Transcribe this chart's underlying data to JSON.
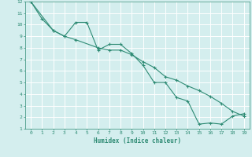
{
  "xlabel": "Humidex (Indice chaleur)",
  "line1_x": [
    0,
    1,
    2,
    3,
    4,
    5,
    6,
    7,
    8,
    9,
    10,
    11,
    12,
    13,
    14,
    15,
    16,
    17,
    18,
    19
  ],
  "line1_y": [
    12,
    10.5,
    9.5,
    9.0,
    10.2,
    10.2,
    7.8,
    8.3,
    8.3,
    7.5,
    6.5,
    5.0,
    5.0,
    3.7,
    3.4,
    1.4,
    1.5,
    1.4,
    2.1,
    2.3
  ],
  "line2_x": [
    0,
    2,
    3,
    4,
    6,
    7,
    8,
    9,
    10,
    11,
    12,
    13,
    14,
    15,
    16,
    17,
    18,
    19
  ],
  "line2_y": [
    12,
    9.5,
    9.0,
    8.7,
    8.0,
    7.8,
    7.8,
    7.4,
    6.8,
    6.3,
    5.5,
    5.2,
    4.7,
    4.3,
    3.8,
    3.2,
    2.5,
    2.1
  ],
  "line_color": "#2e8b74",
  "bg_color": "#d4eeee",
  "grid_color": "#ffffff",
  "xlim": [
    -0.5,
    19.5
  ],
  "ylim": [
    1,
    12
  ],
  "xticks": [
    0,
    1,
    2,
    3,
    4,
    5,
    6,
    7,
    8,
    9,
    10,
    11,
    12,
    13,
    14,
    15,
    16,
    17,
    18,
    19
  ],
  "yticks": [
    1,
    2,
    3,
    4,
    5,
    6,
    7,
    8,
    9,
    10,
    11,
    12
  ]
}
